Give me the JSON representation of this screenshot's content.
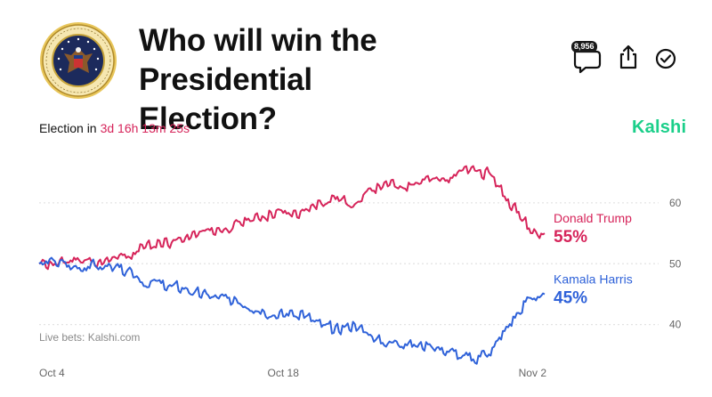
{
  "market": {
    "title_line1": "Who will win the Presidential",
    "title_line2": "Election?",
    "comment_count": "8,956",
    "countdown_label": "Election in",
    "countdown_value": "3d 16h 13m 25s",
    "brand": "Kalshi",
    "source_note": "Live bets: Kalshi.com"
  },
  "icons": {
    "seal": "presidential-seal-icon",
    "comment": "comment-bubble-icon",
    "share": "share-icon",
    "check": "check-circle-icon"
  },
  "colors": {
    "trump": "#d6245a",
    "harris": "#2f62d9",
    "brand": "#1bcf8a",
    "grid": "#e3e3e3"
  },
  "chart_data": {
    "type": "line",
    "x_tick_labels": [
      "Oct 4",
      "Oct 18",
      "Nov 2"
    ],
    "x_range": [
      "Oct 4",
      "Nov 2"
    ],
    "y_ticks": [
      40,
      50,
      60
    ],
    "ylim": [
      36,
      67
    ],
    "grid": "horizontal dotted",
    "legend": "right, at line ends",
    "series": [
      {
        "name": "Donald Trump",
        "value_label": "55%",
        "color": "#d6245a",
        "points": [
          [
            "Oct 4",
            50
          ],
          [
            "Oct 5",
            50
          ],
          [
            "Oct 6",
            50.5
          ],
          [
            "Oct 7",
            50.5
          ],
          [
            "Oct 8",
            50.5
          ],
          [
            "Oct 9",
            51
          ],
          [
            "Oct 10",
            53
          ],
          [
            "Oct 11",
            53.5
          ],
          [
            "Oct 12",
            54
          ],
          [
            "Oct 13",
            55
          ],
          [
            "Oct 14",
            55.5
          ],
          [
            "Oct 15",
            56
          ],
          [
            "Oct 16",
            57
          ],
          [
            "Oct 17",
            58
          ],
          [
            "Oct 18",
            58.5
          ],
          [
            "Oct 19",
            58
          ],
          [
            "Oct 20",
            60
          ],
          [
            "Oct 21",
            61
          ],
          [
            "Oct 22",
            60
          ],
          [
            "Oct 23",
            62
          ],
          [
            "Oct 24",
            63
          ],
          [
            "Oct 25",
            63
          ],
          [
            "Oct 26",
            63.5
          ],
          [
            "Oct 27",
            64
          ],
          [
            "Oct 28",
            65
          ],
          [
            "Oct 29",
            65.5
          ],
          [
            "Oct 30",
            64
          ],
          [
            "Oct 31",
            60
          ],
          [
            "Nov 1",
            56
          ],
          [
            "Nov 2",
            55
          ]
        ]
      },
      {
        "name": "Kamala Harris",
        "value_label": "45%",
        "color": "#2f62d9",
        "points": [
          [
            "Oct 4",
            50
          ],
          [
            "Oct 5",
            50
          ],
          [
            "Oct 6",
            49.5
          ],
          [
            "Oct 7",
            49.5
          ],
          [
            "Oct 8",
            49.5
          ],
          [
            "Oct 9",
            49
          ],
          [
            "Oct 10",
            47
          ],
          [
            "Oct 11",
            46.5
          ],
          [
            "Oct 12",
            46
          ],
          [
            "Oct 13",
            45
          ],
          [
            "Oct 14",
            44.5
          ],
          [
            "Oct 15",
            44
          ],
          [
            "Oct 16",
            43
          ],
          [
            "Oct 17",
            42
          ],
          [
            "Oct 18",
            41.5
          ],
          [
            "Oct 19",
            42
          ],
          [
            "Oct 20",
            40
          ],
          [
            "Oct 21",
            39
          ],
          [
            "Oct 22",
            40
          ],
          [
            "Oct 23",
            38
          ],
          [
            "Oct 24",
            37
          ],
          [
            "Oct 25",
            37
          ],
          [
            "Oct 26",
            36.5
          ],
          [
            "Oct 27",
            36
          ],
          [
            "Oct 28",
            35
          ],
          [
            "Oct 29",
            34.5
          ],
          [
            "Oct 30",
            36
          ],
          [
            "Oct 31",
            40
          ],
          [
            "Nov 1",
            44
          ],
          [
            "Nov 2",
            45
          ]
        ]
      }
    ]
  }
}
